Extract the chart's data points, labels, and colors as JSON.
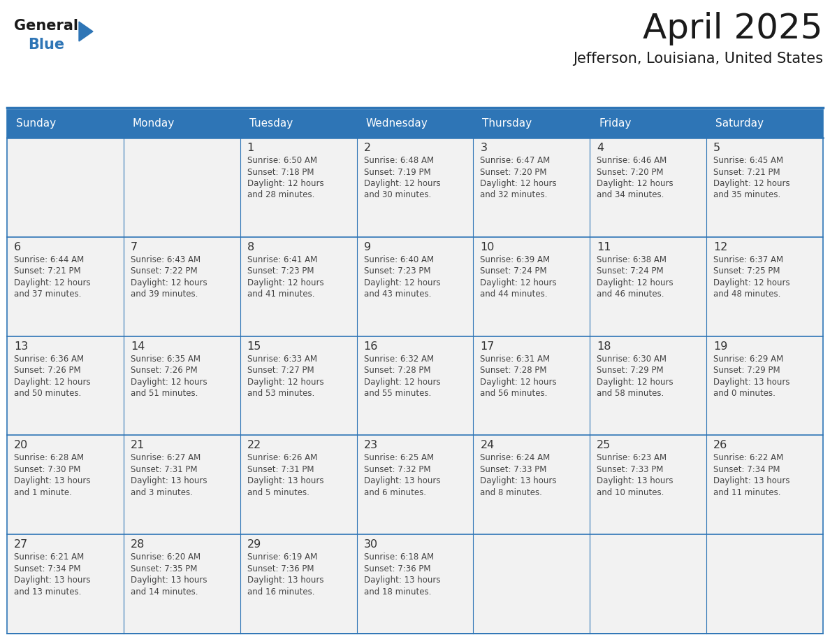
{
  "title": "April 2025",
  "subtitle": "Jefferson, Louisiana, United States",
  "header_bg": "#2E75B6",
  "header_text_color": "#FFFFFF",
  "cell_bg": "#F2F2F2",
  "day_number_color": "#333333",
  "cell_text_color": "#444444",
  "border_color": "#2E75B6",
  "days_of_week": [
    "Sunday",
    "Monday",
    "Tuesday",
    "Wednesday",
    "Thursday",
    "Friday",
    "Saturday"
  ],
  "weeks": [
    [
      {
        "day": "",
        "lines": []
      },
      {
        "day": "",
        "lines": []
      },
      {
        "day": "1",
        "lines": [
          "Sunrise: 6:50 AM",
          "Sunset: 7:18 PM",
          "Daylight: 12 hours",
          "and 28 minutes."
        ]
      },
      {
        "day": "2",
        "lines": [
          "Sunrise: 6:48 AM",
          "Sunset: 7:19 PM",
          "Daylight: 12 hours",
          "and 30 minutes."
        ]
      },
      {
        "day": "3",
        "lines": [
          "Sunrise: 6:47 AM",
          "Sunset: 7:20 PM",
          "Daylight: 12 hours",
          "and 32 minutes."
        ]
      },
      {
        "day": "4",
        "lines": [
          "Sunrise: 6:46 AM",
          "Sunset: 7:20 PM",
          "Daylight: 12 hours",
          "and 34 minutes."
        ]
      },
      {
        "day": "5",
        "lines": [
          "Sunrise: 6:45 AM",
          "Sunset: 7:21 PM",
          "Daylight: 12 hours",
          "and 35 minutes."
        ]
      }
    ],
    [
      {
        "day": "6",
        "lines": [
          "Sunrise: 6:44 AM",
          "Sunset: 7:21 PM",
          "Daylight: 12 hours",
          "and 37 minutes."
        ]
      },
      {
        "day": "7",
        "lines": [
          "Sunrise: 6:43 AM",
          "Sunset: 7:22 PM",
          "Daylight: 12 hours",
          "and 39 minutes."
        ]
      },
      {
        "day": "8",
        "lines": [
          "Sunrise: 6:41 AM",
          "Sunset: 7:23 PM",
          "Daylight: 12 hours",
          "and 41 minutes."
        ]
      },
      {
        "day": "9",
        "lines": [
          "Sunrise: 6:40 AM",
          "Sunset: 7:23 PM",
          "Daylight: 12 hours",
          "and 43 minutes."
        ]
      },
      {
        "day": "10",
        "lines": [
          "Sunrise: 6:39 AM",
          "Sunset: 7:24 PM",
          "Daylight: 12 hours",
          "and 44 minutes."
        ]
      },
      {
        "day": "11",
        "lines": [
          "Sunrise: 6:38 AM",
          "Sunset: 7:24 PM",
          "Daylight: 12 hours",
          "and 46 minutes."
        ]
      },
      {
        "day": "12",
        "lines": [
          "Sunrise: 6:37 AM",
          "Sunset: 7:25 PM",
          "Daylight: 12 hours",
          "and 48 minutes."
        ]
      }
    ],
    [
      {
        "day": "13",
        "lines": [
          "Sunrise: 6:36 AM",
          "Sunset: 7:26 PM",
          "Daylight: 12 hours",
          "and 50 minutes."
        ]
      },
      {
        "day": "14",
        "lines": [
          "Sunrise: 6:35 AM",
          "Sunset: 7:26 PM",
          "Daylight: 12 hours",
          "and 51 minutes."
        ]
      },
      {
        "day": "15",
        "lines": [
          "Sunrise: 6:33 AM",
          "Sunset: 7:27 PM",
          "Daylight: 12 hours",
          "and 53 minutes."
        ]
      },
      {
        "day": "16",
        "lines": [
          "Sunrise: 6:32 AM",
          "Sunset: 7:28 PM",
          "Daylight: 12 hours",
          "and 55 minutes."
        ]
      },
      {
        "day": "17",
        "lines": [
          "Sunrise: 6:31 AM",
          "Sunset: 7:28 PM",
          "Daylight: 12 hours",
          "and 56 minutes."
        ]
      },
      {
        "day": "18",
        "lines": [
          "Sunrise: 6:30 AM",
          "Sunset: 7:29 PM",
          "Daylight: 12 hours",
          "and 58 minutes."
        ]
      },
      {
        "day": "19",
        "lines": [
          "Sunrise: 6:29 AM",
          "Sunset: 7:29 PM",
          "Daylight: 13 hours",
          "and 0 minutes."
        ]
      }
    ],
    [
      {
        "day": "20",
        "lines": [
          "Sunrise: 6:28 AM",
          "Sunset: 7:30 PM",
          "Daylight: 13 hours",
          "and 1 minute."
        ]
      },
      {
        "day": "21",
        "lines": [
          "Sunrise: 6:27 AM",
          "Sunset: 7:31 PM",
          "Daylight: 13 hours",
          "and 3 minutes."
        ]
      },
      {
        "day": "22",
        "lines": [
          "Sunrise: 6:26 AM",
          "Sunset: 7:31 PM",
          "Daylight: 13 hours",
          "and 5 minutes."
        ]
      },
      {
        "day": "23",
        "lines": [
          "Sunrise: 6:25 AM",
          "Sunset: 7:32 PM",
          "Daylight: 13 hours",
          "and 6 minutes."
        ]
      },
      {
        "day": "24",
        "lines": [
          "Sunrise: 6:24 AM",
          "Sunset: 7:33 PM",
          "Daylight: 13 hours",
          "and 8 minutes."
        ]
      },
      {
        "day": "25",
        "lines": [
          "Sunrise: 6:23 AM",
          "Sunset: 7:33 PM",
          "Daylight: 13 hours",
          "and 10 minutes."
        ]
      },
      {
        "day": "26",
        "lines": [
          "Sunrise: 6:22 AM",
          "Sunset: 7:34 PM",
          "Daylight: 13 hours",
          "and 11 minutes."
        ]
      }
    ],
    [
      {
        "day": "27",
        "lines": [
          "Sunrise: 6:21 AM",
          "Sunset: 7:34 PM",
          "Daylight: 13 hours",
          "and 13 minutes."
        ]
      },
      {
        "day": "28",
        "lines": [
          "Sunrise: 6:20 AM",
          "Sunset: 7:35 PM",
          "Daylight: 13 hours",
          "and 14 minutes."
        ]
      },
      {
        "day": "29",
        "lines": [
          "Sunrise: 6:19 AM",
          "Sunset: 7:36 PM",
          "Daylight: 13 hours",
          "and 16 minutes."
        ]
      },
      {
        "day": "30",
        "lines": [
          "Sunrise: 6:18 AM",
          "Sunset: 7:36 PM",
          "Daylight: 13 hours",
          "and 18 minutes."
        ]
      },
      {
        "day": "",
        "lines": []
      },
      {
        "day": "",
        "lines": []
      },
      {
        "day": "",
        "lines": []
      }
    ]
  ],
  "logo_general_color": "#1a1a1a",
  "logo_blue_color": "#2E75B6",
  "logo_triangle_color": "#2E75B6"
}
